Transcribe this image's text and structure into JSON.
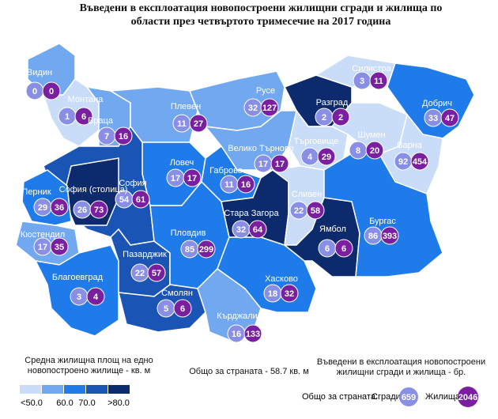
{
  "header": {
    "title": "Въведени в експлоатация новопостроени жилищни сгради и жилища по области през четвъртото тримесечие на 2017 година"
  },
  "legend": {
    "title": "Средна жилищна площ на едно новопостроено жилище - кв. м",
    "colors": [
      "#c9dcf8",
      "#72a8ef",
      "#1e7be9",
      "#1a55b6",
      "#0c2a6c"
    ],
    "labels": [
      "<50.0",
      "60.0",
      "70.0",
      ">80.0"
    ]
  },
  "country_area": "Общо за страната - 58.7 кв. м",
  "counts_legend": {
    "title": "Въведени в експлоатация новопостроени жилищни сгради и жилища - бр.",
    "total_label": "Общо за страната:",
    "buildings_label": "Сгради",
    "buildings": 659,
    "dwellings_label": "Жилища",
    "dwellings": 2046,
    "buildings_color": "#8a8fe6",
    "dwellings_color": "#7a1fa0"
  },
  "regions": [
    {
      "name": "Видин",
      "buildings": 0,
      "dwellings": 0,
      "class": 1
    },
    {
      "name": "Монтана",
      "buildings": 1,
      "dwellings": 6,
      "class": 0
    },
    {
      "name": "Враца",
      "buildings": 7,
      "dwellings": 16,
      "class": 1
    },
    {
      "name": "Плевен",
      "buildings": 11,
      "dwellings": 27,
      "class": 1
    },
    {
      "name": "Русе",
      "buildings": 32,
      "dwellings": 127,
      "class": 1
    },
    {
      "name": "Разград",
      "buildings": 2,
      "dwellings": 2,
      "class": 4
    },
    {
      "name": "Силистра",
      "buildings": 3,
      "dwellings": 11,
      "class": 0
    },
    {
      "name": "Добрич",
      "buildings": 33,
      "dwellings": 47,
      "class": 2
    },
    {
      "name": "Шумен",
      "buildings": 8,
      "dwellings": 20,
      "class": 0
    },
    {
      "name": "Търговище",
      "buildings": 4,
      "dwellings": 29,
      "class": 0
    },
    {
      "name": "Варна",
      "buildings": 92,
      "dwellings": 454,
      "class": 0
    },
    {
      "name": "Велико Търново",
      "buildings": 17,
      "dwellings": 17,
      "class": 1
    },
    {
      "name": "Ловеч",
      "buildings": 17,
      "dwellings": 17,
      "class": 2
    },
    {
      "name": "Габрово",
      "buildings": 11,
      "dwellings": 16,
      "class": 2
    },
    {
      "name": "София",
      "buildings": 54,
      "dwellings": 61,
      "class": 3
    },
    {
      "name": "София (столица)",
      "buildings": 26,
      "dwellings": 73,
      "class": 4
    },
    {
      "name": "Перник",
      "buildings": 29,
      "dwellings": 36,
      "class": 2
    },
    {
      "name": "Кюстендил",
      "buildings": 17,
      "dwellings": 35,
      "class": 1
    },
    {
      "name": "Благоевград",
      "buildings": 3,
      "dwellings": 4,
      "class": 2
    },
    {
      "name": "Пазарджик",
      "buildings": 22,
      "dwellings": 57,
      "class": 3
    },
    {
      "name": "Пловдив",
      "buildings": 85,
      "dwellings": 299,
      "class": 2
    },
    {
      "name": "Смолян",
      "buildings": 5,
      "dwellings": 6,
      "class": 3
    },
    {
      "name": "Кърджали",
      "buildings": 16,
      "dwellings": 133,
      "class": 1
    },
    {
      "name": "Хасково",
      "buildings": 18,
      "dwellings": 32,
      "class": 2
    },
    {
      "name": "Стара Загора",
      "buildings": 32,
      "dwellings": 64,
      "class": 4
    },
    {
      "name": "Сливен",
      "buildings": 22,
      "dwellings": 58,
      "class": 0
    },
    {
      "name": "Ямбол",
      "buildings": 6,
      "dwellings": 6,
      "class": 4
    },
    {
      "name": "Бургас",
      "buildings": 86,
      "dwellings": 393,
      "class": 2
    }
  ]
}
